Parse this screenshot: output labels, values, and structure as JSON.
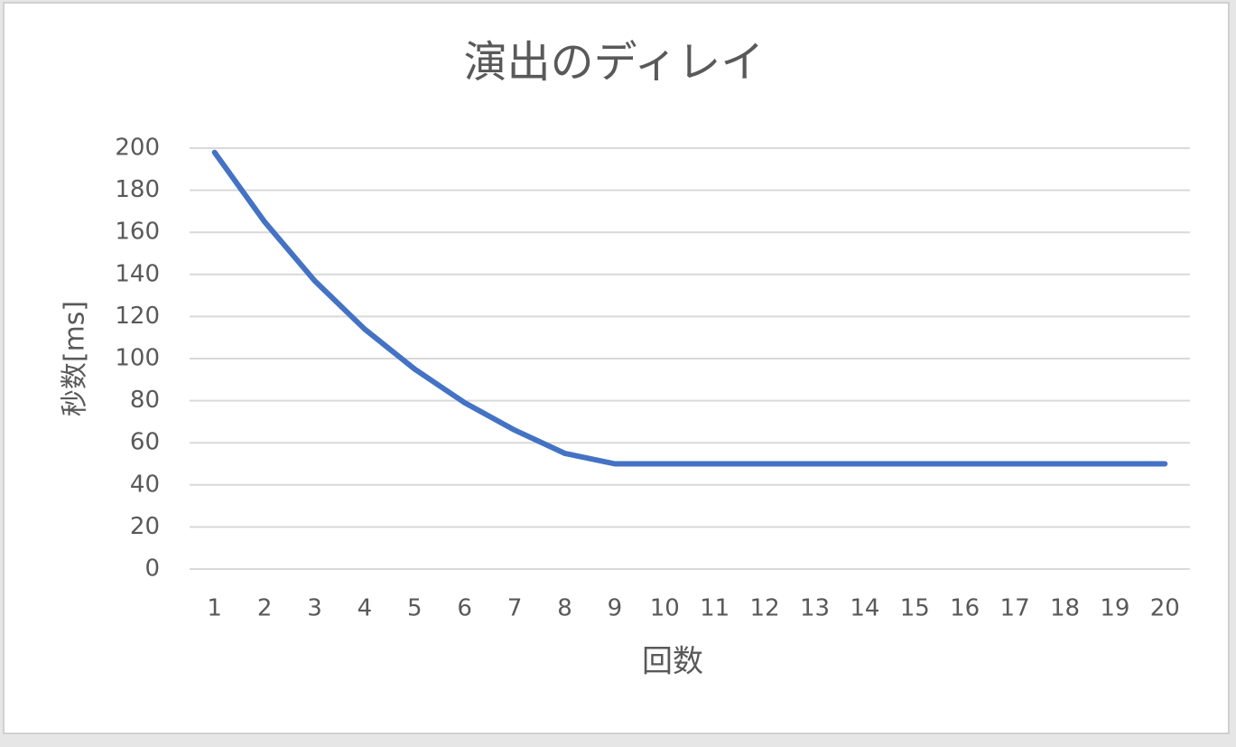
{
  "chart_data": {
    "type": "line",
    "title": "演出のディレイ",
    "x_label": "回数",
    "y_label": "秒数[ms]",
    "categories": [
      "1",
      "2",
      "3",
      "4",
      "5",
      "6",
      "7",
      "8",
      "9",
      "10",
      "11",
      "12",
      "13",
      "14",
      "15",
      "16",
      "17",
      "18",
      "19",
      "20"
    ],
    "values": [
      198,
      165,
      137,
      114,
      95,
      79,
      66,
      55,
      50,
      50,
      50,
      50,
      50,
      50,
      50,
      50,
      50,
      50,
      50,
      50
    ],
    "color": "#4472c4",
    "ylim": [
      0,
      200
    ],
    "yticks": [
      0,
      20,
      40,
      60,
      80,
      100,
      120,
      140,
      160,
      180,
      200
    ],
    "grid": true
  }
}
